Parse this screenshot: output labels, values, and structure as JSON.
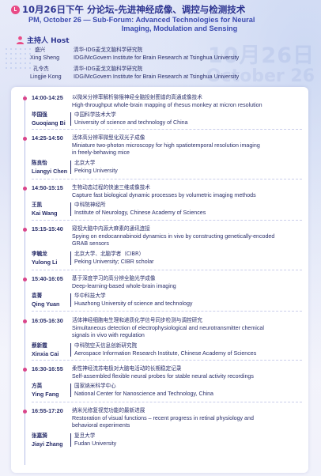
{
  "header": {
    "title_cn": "10月26日下午 分论坛-先进神经成像、调控与检测技术",
    "title_en_line1": "PM, October 26 — Sub-Forum: Advanced Technologies for Neural",
    "title_en_line2": "Imaging, Modulation and Sensing"
  },
  "watermark": {
    "date_cn": "10月26日",
    "date_en": "October 26"
  },
  "host": {
    "heading": "主持人 Host",
    "people": [
      {
        "name_cn": "盛兴",
        "name_en": "Xing Sheng",
        "aff_cn": "清华-IDG麦戈文脑科学研究院",
        "aff_en": "IDG/McGovern Institute for Brain Research at Tsinghua University"
      },
      {
        "name_cn": "孔令杰",
        "name_en": "Lingjie Kong",
        "aff_cn": "清华-IDG麦戈文脑科学研究院",
        "aff_en": "IDG/McGovern Institute for Brain Research at Tsinghua University"
      }
    ]
  },
  "sessions": [
    {
      "time": "14:00-14:25",
      "title_cn": "以微米分辨率解析猕猴神经全脑投射图谱的高通成像技术",
      "title_en": [
        "High-throughput whole-brain mapping of rhesus monkey at micron resolution"
      ],
      "speaker_cn": "毕国强",
      "speaker_en": "Guoqiang Bi",
      "aff_cn": "中国科学技术大学",
      "aff_en": [
        "University of science and technology of China"
      ]
    },
    {
      "time": "14:25-14:50",
      "title_cn": "活体高分辨率微型化双光子成像",
      "title_en": [
        "Miniature two-photon microscopy for high spatiotemporal resolution imaging",
        "in freely-behaving mice"
      ],
      "speaker_cn": "陈良怡",
      "speaker_en": "Liangyi Chen",
      "aff_cn": "北京大学",
      "aff_en": [
        "Peking University"
      ]
    },
    {
      "time": "14:50-15:15",
      "title_cn": "生物动态过程的快速三维成像技术",
      "title_en": [
        "Capture fast biological dynamic processes by volumetric imaging methods"
      ],
      "speaker_cn": "王凯",
      "speaker_en": "Kai Wang",
      "aff_cn": "中科院神经所",
      "aff_en": [
        "Institute of Neurology, Chinese Academy of Sciences"
      ]
    },
    {
      "time": "15:15-15:40",
      "title_cn": "窥视大脑中内源大麻素的通讯连接",
      "title_en": [
        "Spying on endocannabinoid dynamics in vivo by constructing genetically-encoded",
        "GRAB sensors"
      ],
      "speaker_cn": "李毓龙",
      "speaker_en": "Yulong Li",
      "aff_cn": "北京大学、北脑学者（CIBR）",
      "aff_en": [
        "Peking University; CIBR scholar"
      ]
    },
    {
      "time": "15:40-16:05",
      "title_cn": "基于深度学习的高分辨全脑光学成像",
      "title_en": [
        "Deep-learning-based whole-brain imaging"
      ],
      "speaker_cn": "袁菁",
      "speaker_en": "Qing Yuan",
      "aff_cn": "华中科技大学",
      "aff_en": [
        "Huazhong University of science and technology"
      ]
    },
    {
      "time": "16:05-16:30",
      "title_cn": "活体神经细胞电生理和递质化学信号同步检测与调控研究",
      "title_en": [
        "Simultaneous detection of electrophysiological and neurotransmitter chemical",
        "signals in vivo with regulation"
      ],
      "speaker_cn": "蔡新霞",
      "speaker_en": "Xinxia Cai",
      "aff_cn": "中科院空天信息创新研究院",
      "aff_en": [
        "Aerospace Information Research Institute, Chinese Academy of Sciences"
      ]
    },
    {
      "time": "16:30-16:55",
      "title_cn": "柔性神经流苏电极对大脑电活动的长期稳定记录",
      "title_en": [
        "Self-assembled flexible neural probes for stable neural activity recordings"
      ],
      "speaker_cn": "方英",
      "speaker_en": "Ying Fang",
      "aff_cn": "国家纳米科学中心",
      "aff_en": [
        "National Center for Nanoscience and Technology, China"
      ]
    },
    {
      "time": "16:55-17:20",
      "title_cn": "纳米光修复视觉功能的最新进展",
      "title_en": [
        "Restoration of visual functions – recent progress in retinal physiology and",
        "behavioral experiments"
      ],
      "speaker_cn": "张嘉漪",
      "speaker_en": "Jiayi Zhang",
      "aff_cn": "复旦大学",
      "aff_en": [
        "Fudan University"
      ]
    }
  ],
  "colors": {
    "accent_pink": "#d9458a",
    "title_blue": "#2d3490",
    "text_navy": "#2a2f6a",
    "timeline": "#b6bde6"
  }
}
